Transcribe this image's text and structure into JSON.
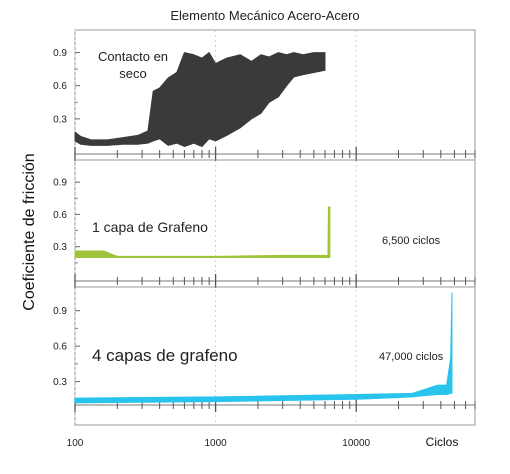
{
  "chart_data": {
    "type": "area",
    "title": "Elemento Mecánico Acero-Acero",
    "ylabel": "Coeficiente de fricción",
    "xlabel": "Ciclos",
    "x_scale": "log",
    "xlim": [
      100,
      70000
    ],
    "x_ticks": [
      100,
      1000,
      10000
    ],
    "x_tick_labels": [
      "100",
      "1000",
      "10000"
    ],
    "panels": [
      {
        "name": "Contacto en seco",
        "annotations": [
          "Contacto en",
          "seco"
        ],
        "color": "#3a3a3a",
        "ylim": [
          0,
          1.05
        ],
        "y_ticks": [
          0.3,
          0.6,
          0.9
        ],
        "y_tick_labels": [
          "0.3",
          "0.6",
          "0.9"
        ],
        "band": [
          {
            "x": 100,
            "low": 0.1,
            "high": 0.18
          },
          {
            "x": 110,
            "low": 0.07,
            "high": 0.14
          },
          {
            "x": 130,
            "low": 0.06,
            "high": 0.11
          },
          {
            "x": 170,
            "low": 0.06,
            "high": 0.11
          },
          {
            "x": 220,
            "low": 0.07,
            "high": 0.13
          },
          {
            "x": 280,
            "low": 0.07,
            "high": 0.15
          },
          {
            "x": 330,
            "low": 0.08,
            "high": 0.19
          },
          {
            "x": 360,
            "low": 0.1,
            "high": 0.55
          },
          {
            "x": 400,
            "low": 0.12,
            "high": 0.58
          },
          {
            "x": 460,
            "low": 0.06,
            "high": 0.67
          },
          {
            "x": 530,
            "low": 0.08,
            "high": 0.72
          },
          {
            "x": 600,
            "low": 0.05,
            "high": 0.9
          },
          {
            "x": 700,
            "low": 0.08,
            "high": 0.88
          },
          {
            "x": 800,
            "low": 0.05,
            "high": 0.85
          },
          {
            "x": 900,
            "low": 0.12,
            "high": 0.9
          },
          {
            "x": 1000,
            "low": 0.1,
            "high": 0.8
          },
          {
            "x": 1200,
            "low": 0.15,
            "high": 0.85
          },
          {
            "x": 1500,
            "low": 0.22,
            "high": 0.88
          },
          {
            "x": 1800,
            "low": 0.3,
            "high": 0.82
          },
          {
            "x": 2100,
            "low": 0.35,
            "high": 0.88
          },
          {
            "x": 2400,
            "low": 0.45,
            "high": 0.86
          },
          {
            "x": 2800,
            "low": 0.5,
            "high": 0.9
          },
          {
            "x": 3200,
            "low": 0.6,
            "high": 0.88
          },
          {
            "x": 3600,
            "low": 0.68,
            "high": 0.9
          },
          {
            "x": 4200,
            "low": 0.7,
            "high": 0.88
          },
          {
            "x": 5000,
            "low": 0.72,
            "high": 0.9
          },
          {
            "x": 6000,
            "low": 0.74,
            "high": 0.9
          }
        ]
      },
      {
        "name": "1 capa de Grafeno",
        "annotations": [
          "1 capa de Grafeno",
          "6,500 ciclos"
        ],
        "color": "#9fc43c",
        "ylim": [
          0,
          1.05
        ],
        "y_ticks": [
          0.3,
          0.6,
          0.9
        ],
        "y_tick_labels": [
          "0.3",
          "0.6",
          "0.9"
        ],
        "band": [
          {
            "x": 100,
            "low": 0.2,
            "high": 0.26
          },
          {
            "x": 130,
            "low": 0.2,
            "high": 0.26
          },
          {
            "x": 160,
            "low": 0.2,
            "high": 0.26
          },
          {
            "x": 200,
            "low": 0.2,
            "high": 0.21
          },
          {
            "x": 500,
            "low": 0.2,
            "high": 0.21
          },
          {
            "x": 1000,
            "low": 0.2,
            "high": 0.21
          },
          {
            "x": 3000,
            "low": 0.2,
            "high": 0.22
          },
          {
            "x": 6000,
            "low": 0.2,
            "high": 0.22
          },
          {
            "x": 6300,
            "low": 0.2,
            "high": 0.22
          },
          {
            "x": 6350,
            "low": 0.2,
            "high": 0.67
          },
          {
            "x": 6500,
            "low": 0.2,
            "high": 0.67
          }
        ]
      },
      {
        "name": "4 capas de grafeno",
        "annotations": [
          "4 capas de grafeno",
          "47,000 ciclos"
        ],
        "color": "#29c4ee",
        "ylim": [
          0,
          1.05
        ],
        "y_ticks": [
          0.3,
          0.6,
          0.9
        ],
        "y_tick_labels": [
          "0.3",
          "0.6",
          "0.9"
        ],
        "band": [
          {
            "x": 100,
            "low": 0.12,
            "high": 0.16
          },
          {
            "x": 1000,
            "low": 0.13,
            "high": 0.17
          },
          {
            "x": 10000,
            "low": 0.15,
            "high": 0.19
          },
          {
            "x": 25000,
            "low": 0.17,
            "high": 0.2
          },
          {
            "x": 30000,
            "low": 0.18,
            "high": 0.23
          },
          {
            "x": 38000,
            "low": 0.19,
            "high": 0.27
          },
          {
            "x": 44000,
            "low": 0.19,
            "high": 0.27
          },
          {
            "x": 47000,
            "low": 0.2,
            "high": 0.5
          },
          {
            "x": 48000,
            "low": 0.2,
            "high": 1.05
          }
        ]
      }
    ]
  }
}
